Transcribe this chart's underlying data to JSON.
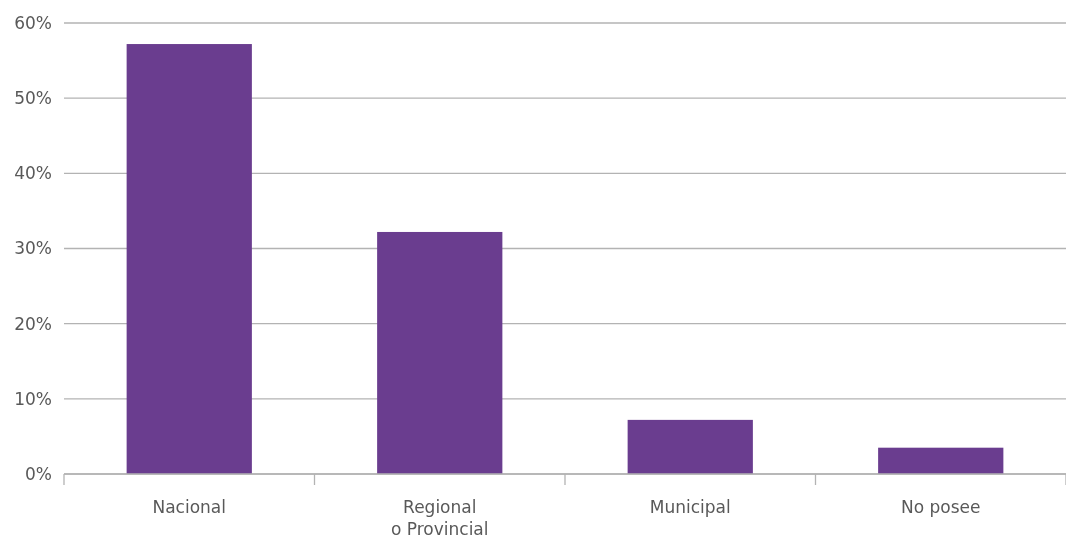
{
  "chart_data": {
    "type": "bar",
    "categories": [
      "Nacional",
      "Regional\no Provincial",
      "Municipal",
      "No posee"
    ],
    "values": [
      57.2,
      32.2,
      7.2,
      3.5
    ],
    "color": "#6a3d8f",
    "ylim": [
      0,
      60
    ],
    "yticks": [
      {
        "value": 0,
        "label": "0%"
      },
      {
        "value": 10,
        "label": "10%"
      },
      {
        "value": 20,
        "label": "20%"
      },
      {
        "value": 30,
        "label": "30%"
      },
      {
        "value": 40,
        "label": "40%"
      },
      {
        "value": 50,
        "label": "50%"
      },
      {
        "value": 60,
        "label": "60%"
      }
    ],
    "grid": "y"
  }
}
